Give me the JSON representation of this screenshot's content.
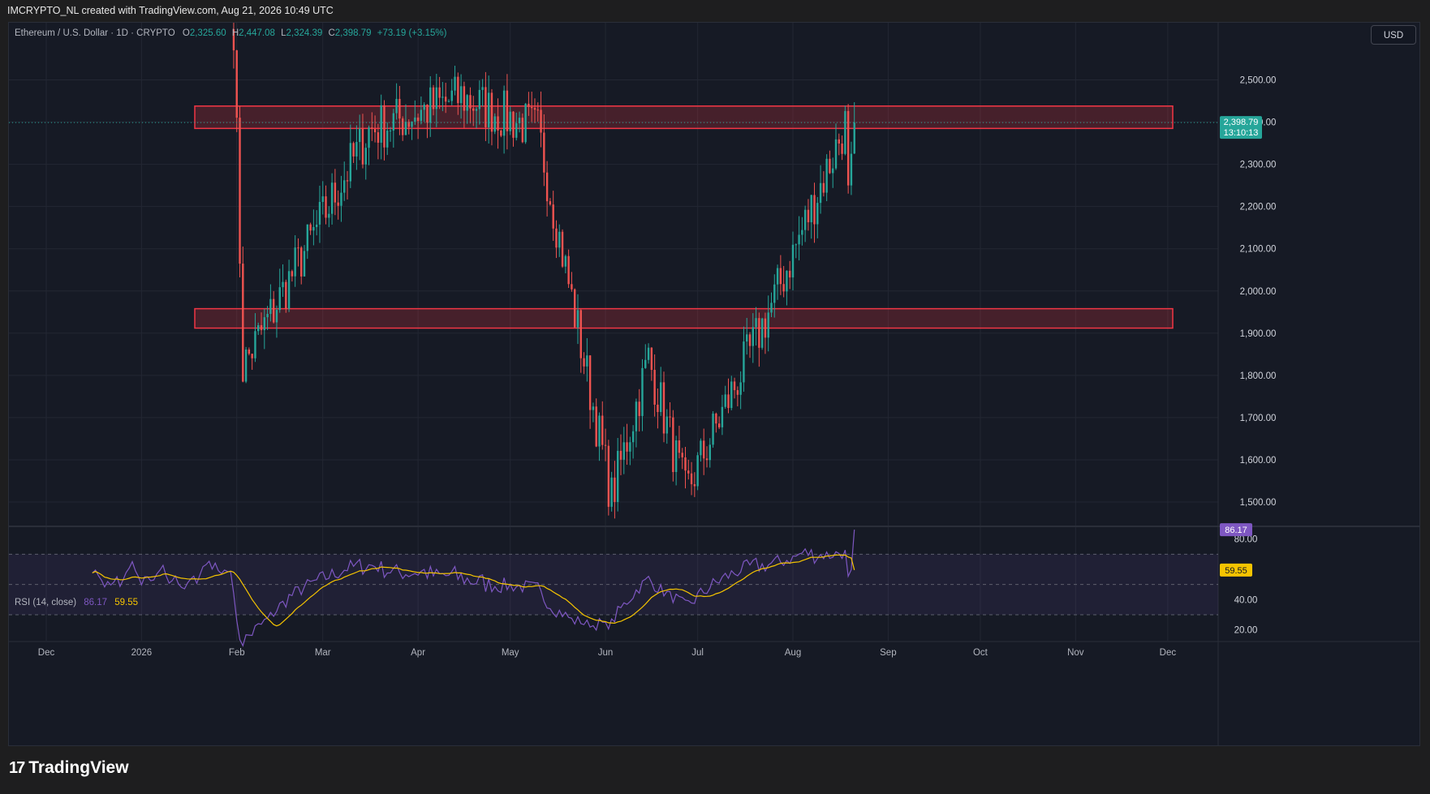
{
  "header": {
    "attribution": "IMCRYPTO_NL created with TradingView.com, Aug 21, 2026 10:49 UTC"
  },
  "symbol": {
    "name": "Ethereum / U.S. Dollar · 1D · CRYPTO",
    "open_label": "O",
    "open": "2,325.60",
    "high_label": "H",
    "high": "2,447.08",
    "low_label": "L",
    "low": "2,324.39",
    "close_label": "C",
    "close": "2,398.79",
    "change": "+73.19 (+3.15%)"
  },
  "currency_button": "USD",
  "price_tag": {
    "price": "2,398.79",
    "countdown": "13:10:13"
  },
  "rsi_legend": {
    "label": "RSI (14, close)",
    "rsi_value": "86.17",
    "ma_value": "59.55"
  },
  "brand": {
    "name": "TradingView",
    "logo_icon": "tradingview-logo-icon"
  },
  "colors": {
    "up": "#26a69a",
    "down": "#ef5350",
    "zone": "#f23645",
    "rsi": "#7e57c2",
    "rsi_ma": "#f5c400"
  },
  "chart_data": [
    {
      "type": "candlestick",
      "title": "Ethereum / U.S. Dollar · 1D · CRYPTO",
      "y_ticks": [
        "2,500.00",
        "2,400.00",
        "2,300.00",
        "2,200.00",
        "2,100.00",
        "2,000.00",
        "1,900.00",
        "1,800.00",
        "1,700.00",
        "1,600.00",
        "1,500.00"
      ],
      "x_ticks": [
        "Dec",
        "2026",
        "Feb",
        "Mar",
        "Apr",
        "May",
        "Jun",
        "Jul",
        "Aug",
        "Sep",
        "Oct",
        "Nov",
        "Dec"
      ],
      "ylim": [
        1450,
        2560
      ],
      "grid": true,
      "zones": [
        {
          "from": 2385,
          "to": 2438
        },
        {
          "from": 1912,
          "to": 1958
        }
      ],
      "last_price": 2398.79,
      "key_points": [
        {
          "date": "2026-01-31",
          "price": 2630
        },
        {
          "date": "2026-02-03",
          "price": 1820
        },
        {
          "date": "2026-03-16",
          "price": 2380
        },
        {
          "date": "2026-04-15",
          "price": 2460
        },
        {
          "date": "2026-05-10",
          "price": 2380
        },
        {
          "date": "2026-06-03",
          "price": 1510
        },
        {
          "date": "2026-06-15",
          "price": 1840
        },
        {
          "date": "2026-06-27",
          "price": 1520
        },
        {
          "date": "2026-07-25",
          "price": 1965
        },
        {
          "date": "2026-08-21",
          "price": 2447
        }
      ]
    },
    {
      "type": "line",
      "title": "RSI (14, close)",
      "y_ticks": [
        "80.00",
        "40.00",
        "20.00"
      ],
      "levels": [
        70,
        50,
        30
      ],
      "ylim": [
        15,
        90
      ],
      "series": [
        {
          "name": "RSI",
          "last": 86.17
        },
        {
          "name": "RSI-based MA",
          "last": 59.55
        }
      ]
    }
  ]
}
